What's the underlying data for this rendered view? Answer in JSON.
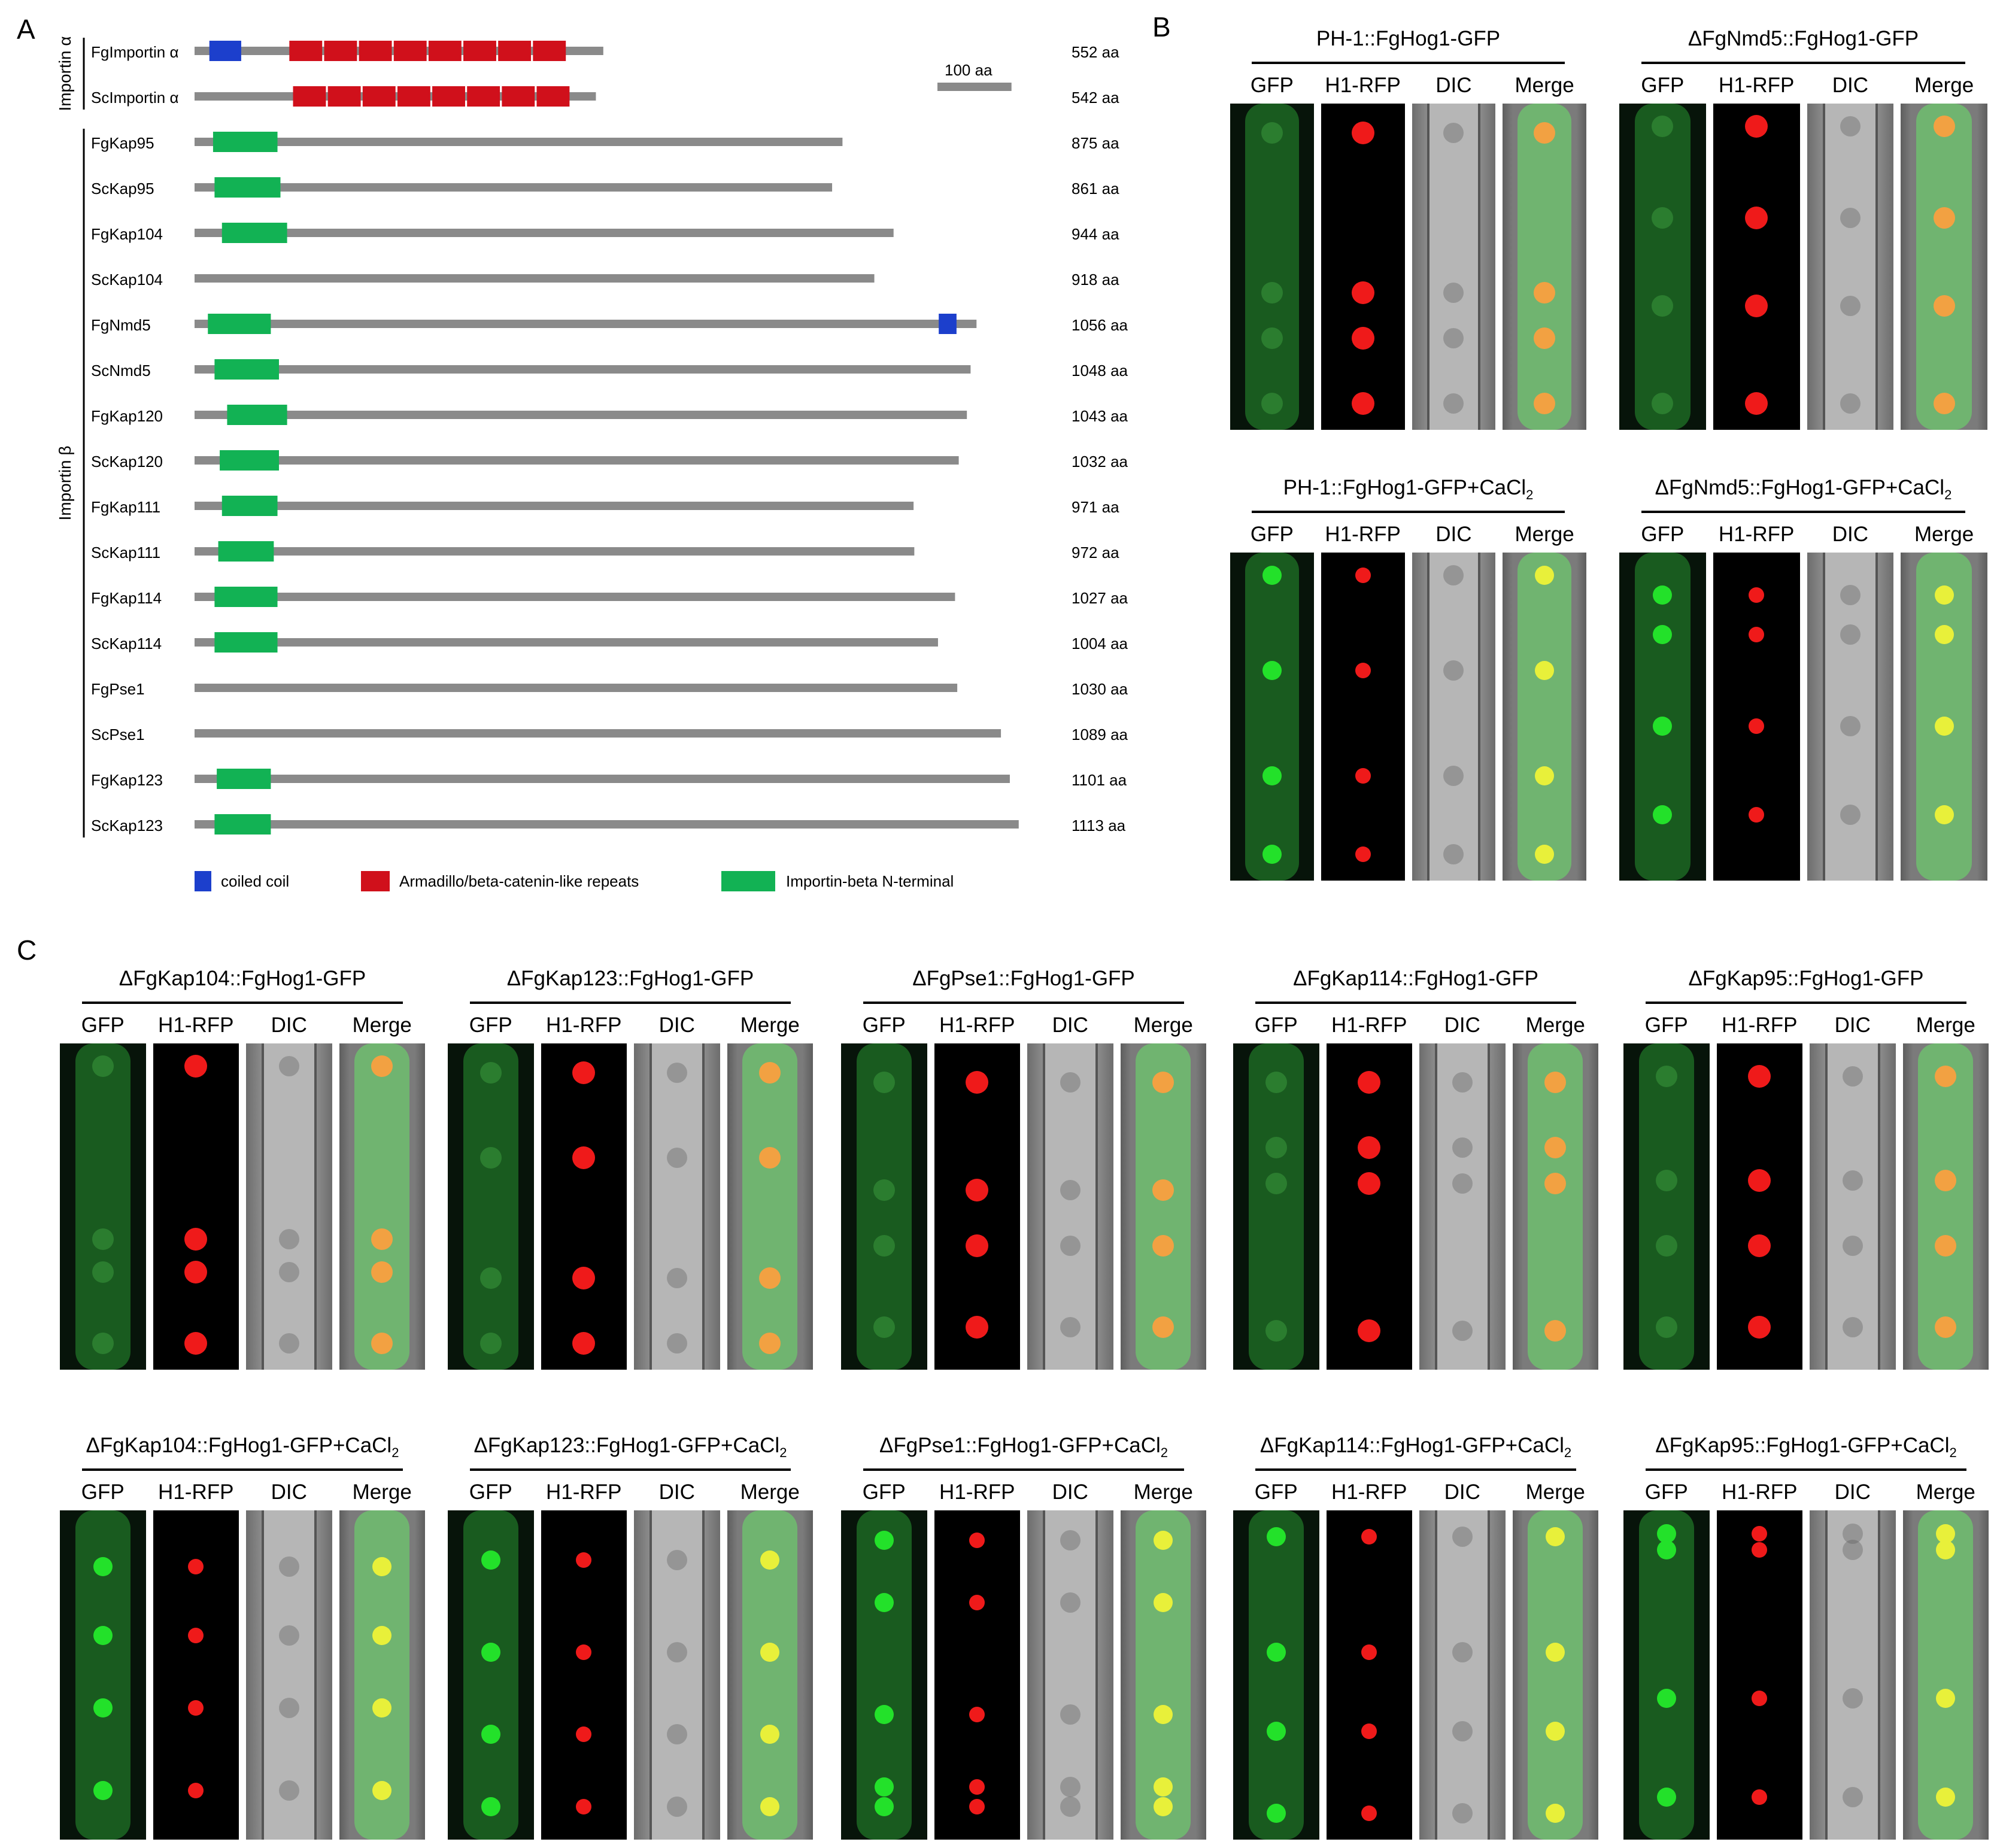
{
  "panel_labels": {
    "a": "A",
    "b": "B",
    "c": "C"
  },
  "panel_a": {
    "group_alpha": "Importin α",
    "group_beta": "Importin β",
    "scale_bar_label": "100 aa",
    "legend": [
      {
        "label": "coiled coil",
        "color": "#1c3fcc"
      },
      {
        "label": "Armadillo/beta-catenin-like repeats",
        "color": "#d0101b"
      },
      {
        "label": "Importin-beta N-terminal",
        "color": "#12b254"
      }
    ],
    "colors": {
      "bar": "#8a8a8a",
      "coiled": "#1c3fcc",
      "arm": "#d0101b",
      "ibn": "#12b254"
    },
    "proteins": [
      {
        "name": "FgImportin α",
        "length_label": "552 aa",
        "length": 552,
        "group": "alpha",
        "domains": [
          {
            "type": "coiled",
            "start": 20,
            "end": 63
          },
          {
            "type": "arm",
            "start": 128,
            "end": 174
          },
          {
            "type": "arm",
            "start": 175,
            "end": 221
          },
          {
            "type": "arm",
            "start": 222,
            "end": 268
          },
          {
            "type": "arm",
            "start": 269,
            "end": 315
          },
          {
            "type": "arm",
            "start": 316,
            "end": 362
          },
          {
            "type": "arm",
            "start": 363,
            "end": 409
          },
          {
            "type": "arm",
            "start": 410,
            "end": 456
          },
          {
            "type": "arm",
            "start": 457,
            "end": 503
          }
        ]
      },
      {
        "name": "ScImportin α",
        "length_label": "542 aa",
        "length": 542,
        "group": "alpha",
        "domains": [
          {
            "type": "arm",
            "start": 133,
            "end": 179
          },
          {
            "type": "arm",
            "start": 180,
            "end": 226
          },
          {
            "type": "arm",
            "start": 227,
            "end": 273
          },
          {
            "type": "arm",
            "start": 274,
            "end": 320
          },
          {
            "type": "arm",
            "start": 321,
            "end": 367
          },
          {
            "type": "arm",
            "start": 368,
            "end": 414
          },
          {
            "type": "arm",
            "start": 415,
            "end": 461
          },
          {
            "type": "arm",
            "start": 462,
            "end": 508
          }
        ]
      },
      {
        "name": "FgKap95",
        "length_label": "875 aa",
        "length": 875,
        "group": "beta",
        "domains": [
          {
            "type": "ibn",
            "start": 25,
            "end": 112
          }
        ]
      },
      {
        "name": "ScKap95",
        "length_label": "861 aa",
        "length": 861,
        "group": "beta",
        "domains": [
          {
            "type": "ibn",
            "start": 27,
            "end": 116
          }
        ]
      },
      {
        "name": "FgKap104",
        "length_label": "944 aa",
        "length": 944,
        "group": "beta",
        "domains": [
          {
            "type": "ibn",
            "start": 37,
            "end": 125
          }
        ]
      },
      {
        "name": "ScKap104",
        "length_label": "918 aa",
        "length": 918,
        "group": "beta",
        "domains": []
      },
      {
        "name": "FgNmd5",
        "length_label": "1056 aa",
        "length": 1056,
        "group": "beta",
        "domains": [
          {
            "type": "ibn",
            "start": 18,
            "end": 103
          },
          {
            "type": "coiled",
            "start": 1005,
            "end": 1029
          }
        ]
      },
      {
        "name": "ScNmd5",
        "length_label": "1048 aa",
        "length": 1048,
        "group": "beta",
        "domains": [
          {
            "type": "ibn",
            "start": 27,
            "end": 114
          }
        ]
      },
      {
        "name": "FgKap120",
        "length_label": "1043 aa",
        "length": 1043,
        "group": "beta",
        "domains": [
          {
            "type": "ibn",
            "start": 44,
            "end": 125
          }
        ]
      },
      {
        "name": "ScKap120",
        "length_label": "1032 aa",
        "length": 1032,
        "group": "beta",
        "domains": [
          {
            "type": "ibn",
            "start": 34,
            "end": 114
          }
        ]
      },
      {
        "name": "FgKap111",
        "length_label": "971 aa",
        "length": 971,
        "group": "beta",
        "domains": [
          {
            "type": "ibn",
            "start": 37,
            "end": 112
          }
        ]
      },
      {
        "name": "ScKap111",
        "length_label": "972 aa",
        "length": 972,
        "group": "beta",
        "domains": [
          {
            "type": "ibn",
            "start": 32,
            "end": 107
          }
        ]
      },
      {
        "name": "FgKap114",
        "length_label": "1027 aa",
        "length": 1027,
        "group": "beta",
        "domains": [
          {
            "type": "ibn",
            "start": 27,
            "end": 112
          }
        ]
      },
      {
        "name": "ScKap114",
        "length_label": "1004 aa",
        "length": 1004,
        "group": "beta",
        "domains": [
          {
            "type": "ibn",
            "start": 27,
            "end": 112
          }
        ]
      },
      {
        "name": "FgPse1",
        "length_label": "1030 aa",
        "length": 1030,
        "group": "beta",
        "domains": []
      },
      {
        "name": "ScPse1",
        "length_label": "1089 aa",
        "length": 1089,
        "group": "beta",
        "domains": []
      },
      {
        "name": "FgKap123",
        "length_label": "1101 aa",
        "length": 1101,
        "group": "beta",
        "domains": [
          {
            "type": "ibn",
            "start": 30,
            "end": 103
          }
        ]
      },
      {
        "name": "ScKap123",
        "length_label": "1113 aa",
        "length": 1113,
        "group": "beta",
        "domains": [
          {
            "type": "ibn",
            "start": 27,
            "end": 103
          }
        ]
      }
    ]
  },
  "channels": [
    "GFP",
    "H1-RFP",
    "DIC",
    "Merge"
  ],
  "panel_b": [
    {
      "title": "PH-1::FgHog1-GFP",
      "cacl2": false,
      "nuclei": [
        0.09,
        0.58,
        0.72,
        0.92
      ]
    },
    {
      "title": "ΔFgNmd5::FgHog1-GFP",
      "cacl2": false,
      "nuclei": [
        0.07,
        0.35,
        0.62,
        0.92
      ]
    },
    {
      "title": "PH-1::FgHog1-GFP+CaCl",
      "subscript": "2",
      "cacl2": true,
      "nuclei": [
        0.07,
        0.36,
        0.68,
        0.92
      ]
    },
    {
      "title": "ΔFgNmd5::FgHog1-GFP+CaCl",
      "subscript": "2",
      "cacl2": true,
      "nuclei": [
        0.13,
        0.25,
        0.53,
        0.8
      ]
    }
  ],
  "panel_c_top": [
    {
      "title": "ΔFgKap104::FgHog1-GFP",
      "cacl2": false,
      "nuclei": [
        0.07,
        0.6,
        0.7,
        0.92
      ]
    },
    {
      "title": "ΔFgKap123::FgHog1-GFP",
      "cacl2": false,
      "nuclei": [
        0.09,
        0.35,
        0.72,
        0.92
      ]
    },
    {
      "title": "ΔFgPse1::FgHog1-GFP",
      "cacl2": false,
      "nuclei": [
        0.12,
        0.45,
        0.62,
        0.87
      ]
    },
    {
      "title": "ΔFgKap114::FgHog1-GFP",
      "cacl2": false,
      "nuclei": [
        0.12,
        0.32,
        0.43,
        0.88
      ]
    },
    {
      "title": "ΔFgKap95::FgHog1-GFP",
      "cacl2": false,
      "nuclei": [
        0.1,
        0.42,
        0.62,
        0.87
      ]
    }
  ],
  "panel_c_bottom": [
    {
      "title": "ΔFgKap104::FgHog1-GFP+CaCl",
      "subscript": "2",
      "cacl2": true,
      "nuclei": [
        0.17,
        0.38,
        0.6,
        0.85
      ]
    },
    {
      "title": "ΔFgKap123::FgHog1-GFP+CaCl",
      "subscript": "2",
      "cacl2": true,
      "nuclei": [
        0.15,
        0.43,
        0.68,
        0.9
      ]
    },
    {
      "title": "ΔFgPse1::FgHog1-GFP+CaCl",
      "subscript": "2",
      "cacl2": true,
      "nuclei": [
        0.09,
        0.28,
        0.62,
        0.84,
        0.9
      ]
    },
    {
      "title": "ΔFgKap114::FgHog1-GFP+CaCl",
      "subscript": "2",
      "cacl2": true,
      "nuclei": [
        0.08,
        0.43,
        0.67,
        0.92
      ]
    },
    {
      "title": "ΔFgKap95::FgHog1-GFP+CaCl",
      "subscript": "2",
      "cacl2": true,
      "nuclei": [
        0.07,
        0.12,
        0.57,
        0.87
      ]
    }
  ]
}
